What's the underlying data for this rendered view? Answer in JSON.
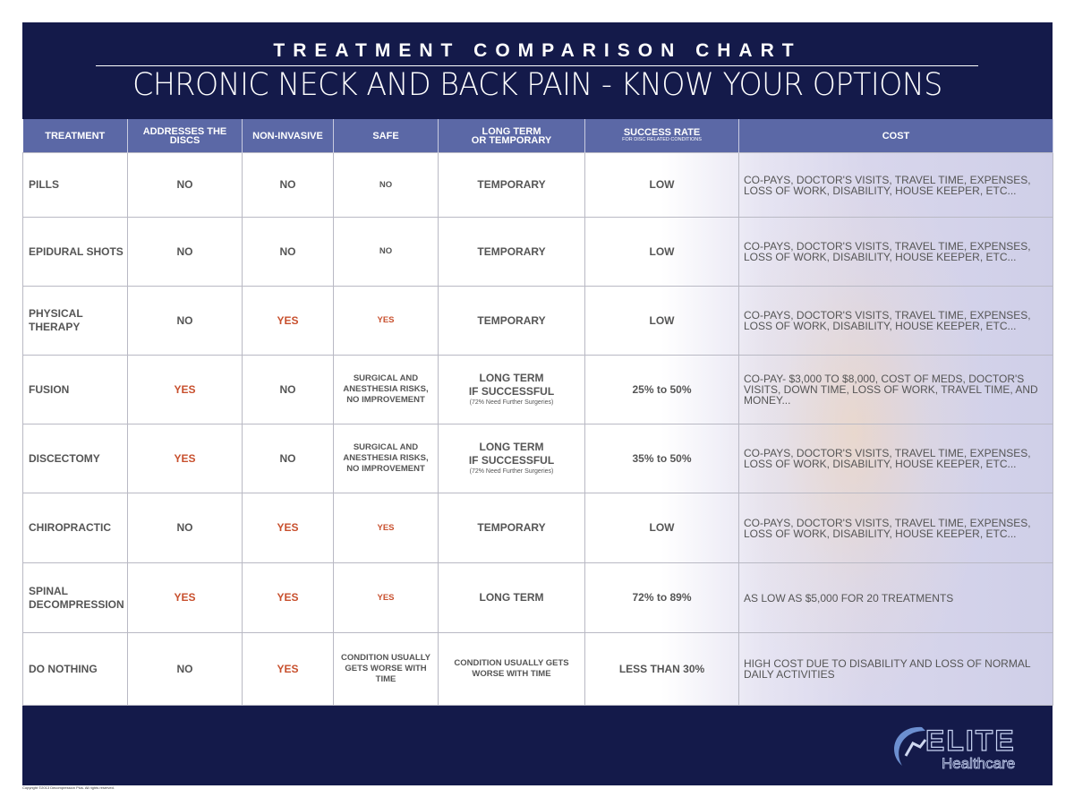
{
  "header": {
    "title": "TREATMENT COMPARISON CHART",
    "subtitle": "CHRONIC NECK AND BACK PAIN - KNOW YOUR OPTIONS"
  },
  "table": {
    "columns": [
      "TREATMENT",
      "ADDRESSES THE DISCS",
      "NON-INVASIVE",
      "SAFE",
      "LONG TERM\nOR TEMPORARY",
      {
        "text": "SUCCESS RATE",
        "note": "FOR DISC RELATED CONDITIONS"
      },
      "COST"
    ],
    "rows": [
      [
        "PILLS",
        "NO",
        "NO",
        "NO",
        "TEMPORARY",
        "LOW",
        "CO-PAYS, DOCTOR'S VISITS, TRAVEL TIME, EXPENSES, LOSS OF WORK, DISABILITY, HOUSE KEEPER, ETC..."
      ],
      [
        "EPIDURAL SHOTS",
        "NO",
        "NO",
        "NO",
        "TEMPORARY",
        "LOW",
        "CO-PAYS, DOCTOR'S VISITS, TRAVEL TIME, EXPENSES, LOSS OF WORK, DISABILITY, HOUSE KEEPER, ETC..."
      ],
      [
        "PHYSICAL THERAPY",
        "NO",
        "YES",
        "YES",
        "TEMPORARY",
        "LOW",
        "CO-PAYS, DOCTOR'S VISITS, TRAVEL TIME, EXPENSES, LOSS OF WORK, DISABILITY, HOUSE KEEPER, ETC..."
      ],
      [
        "FUSION",
        "YES",
        "NO",
        "SURGICAL AND ANESTHESIA RISKS, NO IMPROVEMENT",
        {
          "text": "LONG TERM\nIF SUCCESSFUL",
          "note": "(72% Need Further Surgeries)"
        },
        "25% to 50%",
        "CO-PAY- $3,000 TO $8,000, COST OF MEDS, DOCTOR'S VISITS, DOWN TIME, LOSS OF WORK, TRAVEL TIME, AND MONEY..."
      ],
      [
        "DISCECTOMY",
        "YES",
        "NO",
        "SURGICAL AND ANESTHESIA RISKS, NO IMPROVEMENT",
        {
          "text": "LONG TERM\nIF SUCCESSFUL",
          "note": "(72% Need Further Surgeries)"
        },
        "35% to 50%",
        "CO-PAYS, DOCTOR'S VISITS, TRAVEL TIME, EXPENSES, LOSS OF WORK, DISABILITY, HOUSE KEEPER, ETC..."
      ],
      [
        "CHIROPRACTIC",
        "NO",
        "YES",
        "YES",
        "TEMPORARY",
        "LOW",
        "CO-PAYS, DOCTOR'S VISITS, TRAVEL TIME, EXPENSES, LOSS OF WORK, DISABILITY, HOUSE KEEPER, ETC..."
      ],
      [
        "SPINAL DECOMPRESSION",
        "YES",
        "YES",
        "YES",
        "LONG TERM",
        "72% to 89%",
        "AS LOW AS $5,000 FOR 20 TREATMENTS"
      ],
      [
        "DO NOTHING",
        "NO",
        "YES",
        "CONDITION USUALLY GETS WORSE WITH TIME",
        "CONDITION USUALLY GETS WORSE WITH TIME",
        "LESS THAN 30%",
        "HIGH COST DUE TO DISABILITY AND LOSS OF NORMAL DAILY ACTIVITIES"
      ]
    ]
  },
  "logo": {
    "name": "ELITE",
    "tagline": "Healthcare"
  },
  "footer": {
    "copyright": "Copyright ©2013 Decompression Plus. All rights reserved."
  }
}
